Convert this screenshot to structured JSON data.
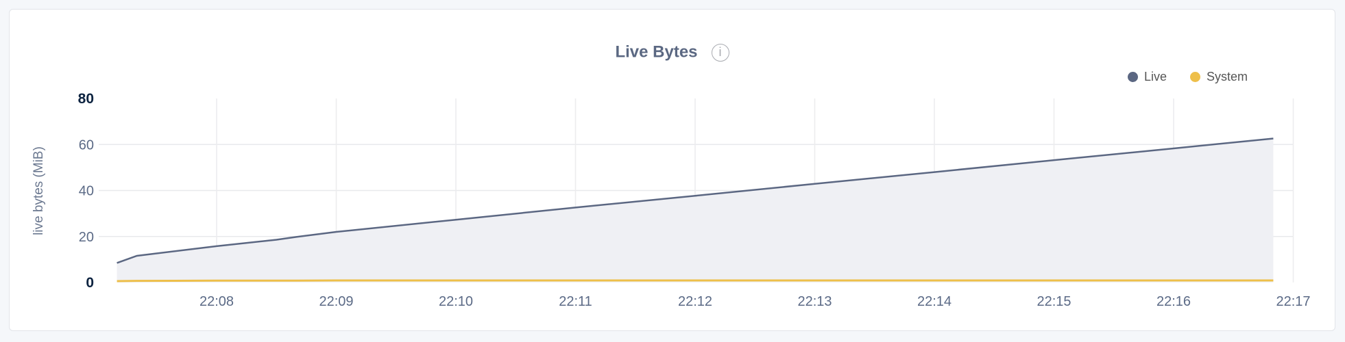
{
  "chart_data": {
    "type": "area",
    "title": "Live Bytes",
    "ylabel": "live bytes (MiB)",
    "xlabel": "",
    "ylim": [
      0,
      80
    ],
    "yticks": [
      "0",
      "20",
      "40",
      "60",
      "80"
    ],
    "xticks": [
      "22:08",
      "22:09",
      "22:10",
      "22:11",
      "22:12",
      "22:13",
      "22:14",
      "22:15",
      "22:16",
      "22:17"
    ],
    "grid": true,
    "legend_placement": "top-right",
    "x": [
      "22:07:10",
      "22:07:20",
      "22:08:00",
      "22:08:30",
      "22:08:40",
      "22:09:00",
      "22:10:00",
      "22:11:00",
      "22:12:00",
      "22:13:00",
      "22:14:00",
      "22:15:00",
      "22:16:00",
      "22:16:50"
    ],
    "series": [
      {
        "name": "Live",
        "color": "#5b6782",
        "values": [
          8.5,
          11.6,
          15.8,
          18.6,
          19.8,
          22.0,
          27.3,
          32.6,
          37.7,
          42.9,
          48.0,
          53.2,
          58.3,
          62.6
        ]
      },
      {
        "name": "System",
        "color": "#eebf4a",
        "values": [
          0.6,
          0.7,
          0.8,
          0.8,
          0.8,
          0.9,
          0.9,
          0.9,
          0.9,
          0.9,
          0.9,
          0.9,
          0.9,
          0.9
        ]
      }
    ]
  }
}
